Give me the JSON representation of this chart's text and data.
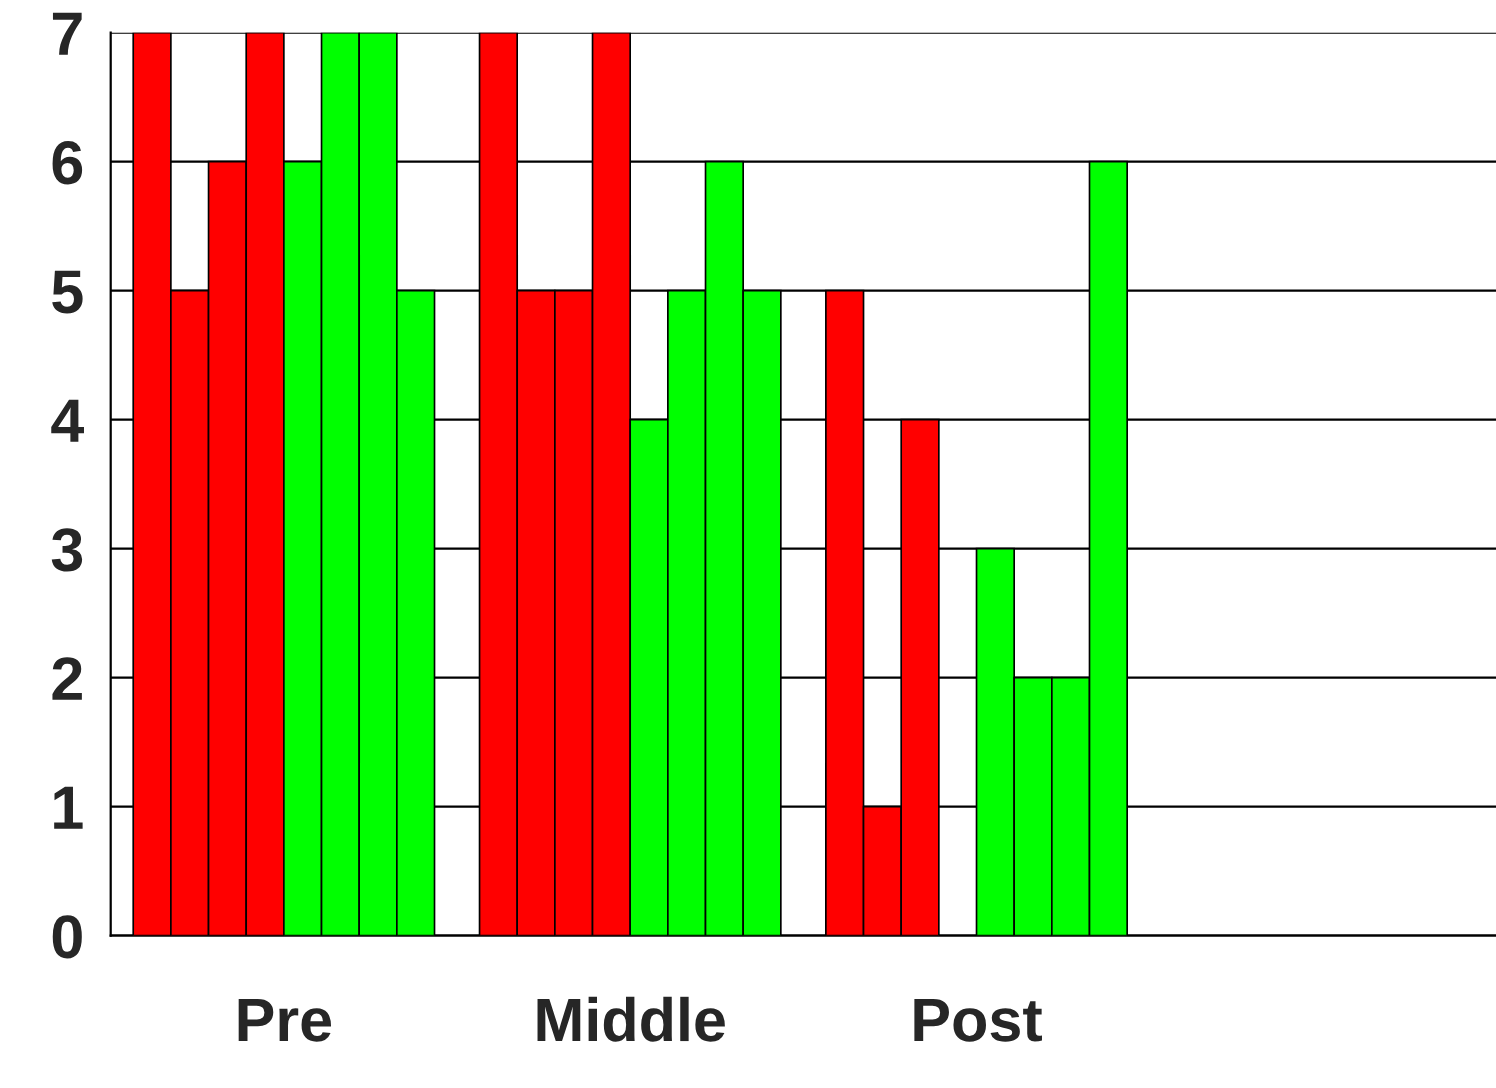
{
  "chart_data": {
    "type": "bar",
    "categories": [
      "Pre",
      "Middle",
      "Post",
      null
    ],
    "series": [
      {
        "color": "#ff0000",
        "values": [
          7,
          7,
          5,
          null
        ]
      },
      {
        "color": "#ff0000",
        "values": [
          5,
          5,
          1,
          null
        ]
      },
      {
        "color": "#ff0000",
        "values": [
          6,
          5,
          4,
          null
        ]
      },
      {
        "color": "#ff0000",
        "values": [
          7,
          7,
          null,
          null
        ]
      },
      {
        "color": "#00ff00",
        "values": [
          6,
          4,
          3,
          null
        ]
      },
      {
        "color": "#00ff00",
        "values": [
          7,
          5,
          2,
          null
        ]
      },
      {
        "color": "#00ff00",
        "values": [
          7,
          6,
          2,
          null
        ]
      },
      {
        "color": "#00ff00",
        "values": [
          5,
          5,
          6,
          null
        ]
      }
    ],
    "ylim": [
      0,
      7
    ],
    "yticks": [
      0,
      1,
      2,
      3,
      4,
      5,
      6,
      7
    ],
    "grid": "y",
    "legend": false
  }
}
